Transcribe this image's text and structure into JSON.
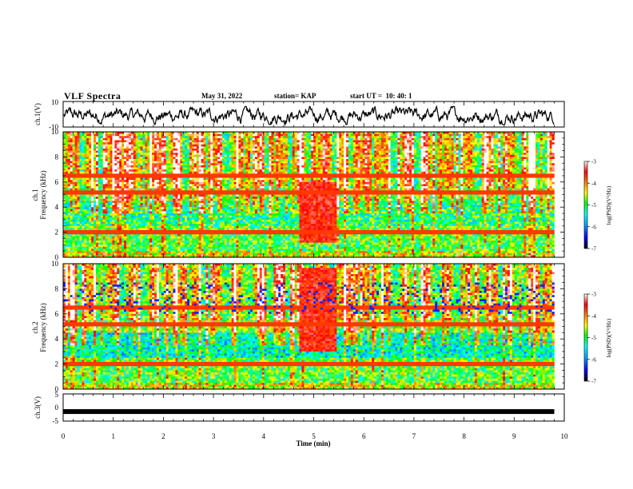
{
  "header": {
    "title": "VLF Spectra",
    "date": "May 31, 2022",
    "station": "station= KAP",
    "start": "start UT =  10: 40: 1"
  },
  "colors": {
    "waveform": "#000000",
    "colormap": [
      "#000000",
      "#0000ff",
      "#00aaff",
      "#00ffff",
      "#00ff00",
      "#ffff00",
      "#ff8000",
      "#ff0000",
      "#ffffff"
    ]
  },
  "chart_data": [
    {
      "type": "line",
      "panel": "ch1-waveform",
      "ylabel": "ch.1(V)",
      "ylim": [
        -10,
        10
      ],
      "ytick_labels": [
        "10",
        "-10"
      ],
      "x_range_min": [
        0,
        9.8
      ],
      "description_values": "noisy waveform fluctuating roughly between -8 and +6 V"
    },
    {
      "type": "heatmap",
      "panel": "ch1-spectrogram",
      "ylabel": "ch.1\nFrequency (kHz)",
      "ylabel_line1": "ch.1",
      "ylabel_line2": "Frequency (kHz)",
      "ylim": [
        0,
        10
      ],
      "ytick_labels": [
        "0",
        "2",
        "4",
        "6",
        "8",
        "10"
      ],
      "colorbar": {
        "label": "log(PSD)(V²/Hz)",
        "range": [
          -7,
          -3
        ],
        "tick_labels": [
          "-3",
          "-4",
          "-5",
          "-6",
          "-7"
        ]
      }
    },
    {
      "type": "heatmap",
      "panel": "ch2-spectrogram",
      "ylabel_line1": "ch.2",
      "ylabel_line2": "Frequency (kHz)",
      "ylim": [
        0,
        10
      ],
      "ytick_labels": [
        "0",
        "2",
        "4",
        "6",
        "8",
        "10"
      ],
      "colorbar": {
        "label": "log(PSD)(V²/Hz)",
        "range": [
          -7,
          -3
        ],
        "tick_labels": [
          "-3",
          "-4",
          "-5",
          "-6",
          "-7"
        ]
      }
    },
    {
      "type": "line",
      "panel": "ch3-waveform",
      "ylabel": "ch.3(V)",
      "ylim": [
        -5,
        5
      ],
      "ytick_labels": [
        "5",
        "0",
        "-5"
      ],
      "level": -1.5
    }
  ],
  "xaxis": {
    "label": "Time (min)",
    "range": [
      0,
      10
    ],
    "tick_labels": [
      "0",
      "1",
      "2",
      "3",
      "4",
      "5",
      "6",
      "7",
      "8",
      "9",
      "10"
    ]
  }
}
